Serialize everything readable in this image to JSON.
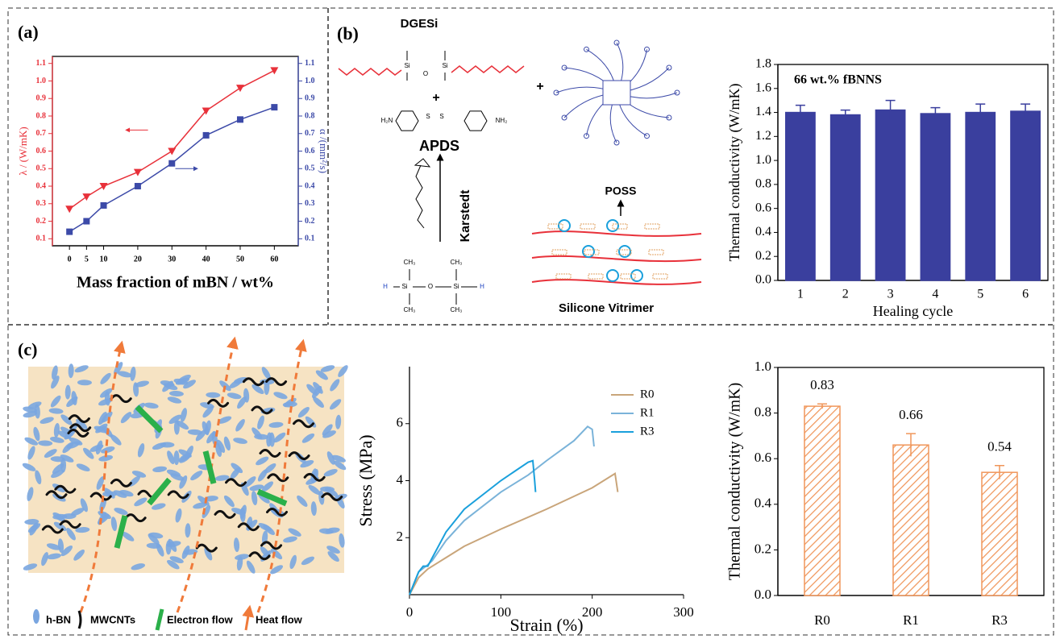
{
  "panels": [
    "(a)",
    "(b)",
    "(c)"
  ],
  "diagram_b": {
    "texts": [
      "DGESi",
      "APDS",
      "Karstedt",
      "POSS",
      "Silicone Vitrimer",
      "+",
      "+"
    ],
    "atoms": [
      "Si",
      "O",
      "Si",
      "H₂N",
      "S",
      "S",
      "NH₂",
      "H",
      "Si",
      "O",
      "Si",
      "H",
      "CH₃",
      "CH₃",
      "CH₃",
      "CH₃"
    ]
  },
  "diagram_c": {
    "legend": [
      "h-BN",
      "MWCNTs",
      "Electron flow",
      "Heat flow"
    ]
  },
  "chart_data": [
    {
      "type": "line",
      "xlabel": "Mass fraction of mBN / wt%",
      "ylabel": "λ / (W/mK)",
      "y2label": "α /(mm²/s)",
      "ycolor": "#e8313a",
      "y2color": "#3c4aa8",
      "x": [
        0,
        5,
        10,
        20,
        30,
        40,
        50,
        60
      ],
      "xlim": [
        -5,
        67
      ],
      "xticks": [
        0,
        5,
        10,
        20,
        30,
        40,
        50,
        60
      ],
      "ylim": [
        0.06,
        1.14
      ],
      "yticks": [
        0.1,
        0.2,
        0.3,
        0.4,
        0.5,
        0.6,
        0.7,
        0.8,
        0.9,
        {
          "value": 1,
          "label": "1.0"
        },
        1.1
      ],
      "y2lim": [
        0.06,
        1.14
      ],
      "y2ticks": [
        0.1,
        0.2,
        0.3,
        0.4,
        0.5,
        0.6,
        0.7,
        0.8,
        0.9,
        {
          "value": 1,
          "label": "1.0"
        },
        1.1
      ],
      "series": [
        {
          "color": "#e8313a",
          "marker": "triangle-down",
          "values": [
            0.27,
            0.34,
            0.4,
            0.48,
            0.6,
            0.83,
            0.96,
            1.06
          ]
        },
        {
          "color": "#3c4aa8",
          "marker": "square",
          "axis": "y2",
          "values": [
            0.14,
            0.2,
            0.29,
            0.4,
            0.53,
            0.69,
            0.78,
            0.85
          ]
        }
      ]
    },
    {
      "type": "bar",
      "xlabel": "Healing cycle",
      "ylabel": "Thermal conductivity (W/mK)",
      "annotation": "66 wt.% fBNNS",
      "color": "#3a3f9e",
      "categories": [
        "1",
        "2",
        "3",
        "4",
        "5",
        "6"
      ],
      "values": [
        1.4,
        1.38,
        1.42,
        1.39,
        1.4,
        1.41
      ],
      "errors": [
        0.06,
        0.04,
        0.08,
        0.05,
        0.07,
        0.06
      ],
      "ylim": [
        0,
        1.8
      ],
      "yticks": [
        {
          "value": 0,
          "label": "0.0"
        },
        0.2,
        0.4,
        0.6,
        0.8,
        {
          "value": 1,
          "label": "1.0"
        },
        1.2,
        1.4,
        1.6,
        1.8
      ]
    },
    {
      "type": "line",
      "xlabel": "Strain (%)",
      "ylabel": "Stress (MPa)",
      "legend": "upper right",
      "xlim": [
        0,
        300
      ],
      "xticks": [
        0,
        100,
        200,
        300
      ],
      "ylim": [
        0,
        8
      ],
      "yticks": [
        2,
        4,
        6
      ],
      "series": [
        {
          "name": "R0",
          "color": "#c9a57a",
          "x": [
            0,
            10,
            20,
            30,
            40,
            60,
            100,
            150,
            200,
            225,
            228
          ],
          "values": [
            0,
            0.6,
            0.9,
            1.1,
            1.3,
            1.7,
            2.3,
            3.0,
            3.75,
            4.25,
            3.6
          ]
        },
        {
          "name": "R1",
          "color": "#7ab3d9",
          "x": [
            0,
            10,
            20,
            25,
            40,
            60,
            100,
            130,
            150,
            180,
            195,
            200,
            202
          ],
          "values": [
            0,
            0.8,
            1.05,
            1.2,
            1.9,
            2.6,
            3.6,
            4.2,
            4.7,
            5.4,
            5.9,
            5.8,
            5.2
          ]
        },
        {
          "name": "R3",
          "color": "#1aa0dc",
          "x": [
            0,
            10,
            15,
            20,
            25,
            40,
            60,
            100,
            130,
            135,
            137,
            138
          ],
          "values": [
            0,
            0.8,
            1.0,
            1.0,
            1.3,
            2.2,
            3.0,
            4.0,
            4.65,
            4.7,
            4.0,
            3.6
          ]
        }
      ]
    },
    {
      "type": "bar",
      "ylabel": "Thermal conductivity (W/mK)",
      "color": "#f0965a",
      "hatch": true,
      "data_labels": true,
      "categories": [
        "R0",
        "R1",
        "R3"
      ],
      "values": [
        0.83,
        0.66,
        0.54
      ],
      "errors": [
        0.01,
        0.05,
        0.03
      ],
      "ylim": [
        0,
        1
      ],
      "yticks": [
        {
          "value": 0,
          "label": "0.0"
        },
        0.2,
        0.4,
        0.6,
        0.8,
        {
          "value": 1,
          "label": "1.0"
        }
      ]
    }
  ]
}
